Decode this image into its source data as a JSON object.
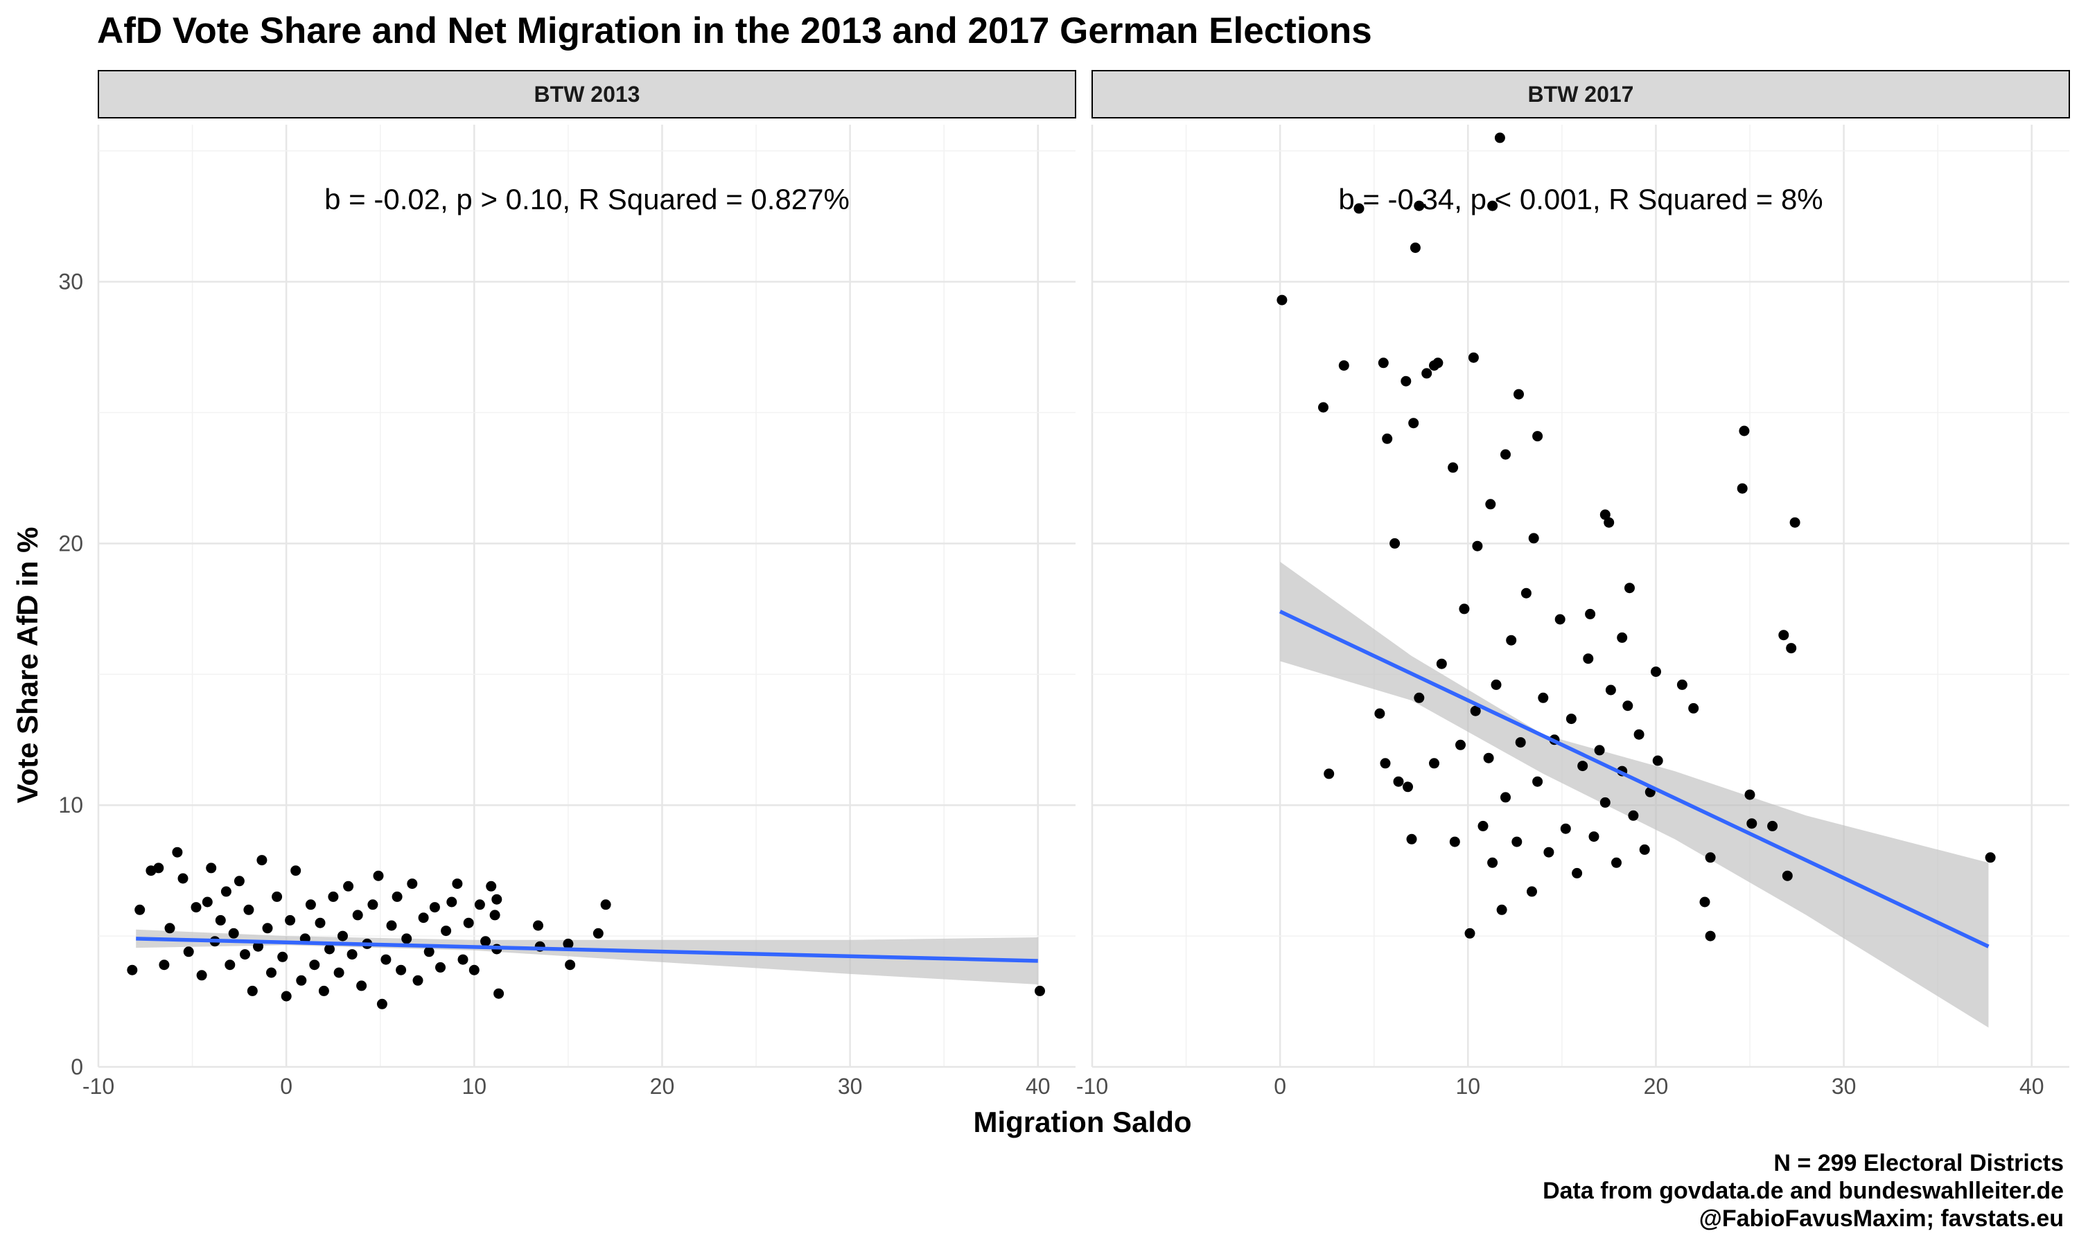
{
  "chart_data": {
    "type": "scatter",
    "title": "AfD Vote Share and Net Migration in the 2013 and 2017 German Elections",
    "xlabel": "Migration Saldo",
    "ylabel": "Vote Share AfD in %",
    "xlim": [
      -10,
      42
    ],
    "ylim": [
      0,
      36
    ],
    "x_ticks": [
      -10,
      0,
      10,
      20,
      30,
      40
    ],
    "x_tick_labels": [
      "-10",
      "0",
      "10",
      "20",
      "30",
      "40"
    ],
    "y_ticks": [
      0,
      10,
      20,
      30
    ],
    "y_tick_labels": [
      "0",
      "10",
      "20",
      "30"
    ],
    "grid": true,
    "point_color": "#000000",
    "line_color": "#3366FF",
    "band_color": "#bfbfbf",
    "strip_fill": "#d9d9d9",
    "caption": [
      "N = 299 Electoral Districts",
      "Data from govdata.de and bundeswahlleiter.de",
      "@FabioFavusMaxim; favstats.eu"
    ],
    "panels": [
      {
        "strip": "BTW 2013",
        "annotation": "b = -0.02, p > 0.10, R Squared = 0.827%",
        "fit": {
          "x": [
            -8,
            40
          ],
          "y": [
            4.9,
            4.05
          ]
        },
        "band": {
          "x": [
            -8,
            0,
            10,
            20,
            30,
            40
          ],
          "lo": [
            4.55,
            4.65,
            4.45,
            4.0,
            3.55,
            3.15
          ],
          "hi": [
            5.25,
            5.0,
            4.85,
            4.85,
            4.85,
            4.95
          ]
        },
        "points": [
          [
            -8.2,
            3.7
          ],
          [
            -7.8,
            6.0
          ],
          [
            -7.2,
            7.5
          ],
          [
            -6.8,
            7.6
          ],
          [
            -6.5,
            3.9
          ],
          [
            -6.2,
            5.3
          ],
          [
            -5.8,
            8.2
          ],
          [
            -5.5,
            7.2
          ],
          [
            -5.2,
            4.4
          ],
          [
            -4.8,
            6.1
          ],
          [
            -4.5,
            3.5
          ],
          [
            -4.2,
            6.3
          ],
          [
            -4.0,
            7.6
          ],
          [
            -3.8,
            4.8
          ],
          [
            -3.5,
            5.6
          ],
          [
            -3.2,
            6.7
          ],
          [
            -3.0,
            3.9
          ],
          [
            -2.8,
            5.1
          ],
          [
            -2.5,
            7.1
          ],
          [
            -2.2,
            4.3
          ],
          [
            -2.0,
            6.0
          ],
          [
            -1.8,
            2.9
          ],
          [
            -1.5,
            4.6
          ],
          [
            -1.3,
            7.9
          ],
          [
            -1.0,
            5.3
          ],
          [
            -0.8,
            3.6
          ],
          [
            -0.5,
            6.5
          ],
          [
            -0.2,
            4.2
          ],
          [
            0.0,
            2.7
          ],
          [
            0.2,
            5.6
          ],
          [
            0.5,
            7.5
          ],
          [
            0.8,
            3.3
          ],
          [
            1.0,
            4.9
          ],
          [
            1.3,
            6.2
          ],
          [
            1.5,
            3.9
          ],
          [
            1.8,
            5.5
          ],
          [
            2.0,
            2.9
          ],
          [
            2.3,
            4.5
          ],
          [
            2.5,
            6.5
          ],
          [
            2.8,
            3.6
          ],
          [
            3.0,
            5.0
          ],
          [
            3.3,
            6.9
          ],
          [
            3.5,
            4.3
          ],
          [
            3.8,
            5.8
          ],
          [
            4.0,
            3.1
          ],
          [
            4.3,
            4.7
          ],
          [
            4.6,
            6.2
          ],
          [
            4.9,
            7.3
          ],
          [
            5.1,
            2.4
          ],
          [
            5.3,
            4.1
          ],
          [
            5.6,
            5.4
          ],
          [
            5.9,
            6.5
          ],
          [
            6.1,
            3.7
          ],
          [
            6.4,
            4.9
          ],
          [
            6.7,
            7.0
          ],
          [
            7.0,
            3.3
          ],
          [
            7.3,
            5.7
          ],
          [
            7.6,
            4.4
          ],
          [
            7.9,
            6.1
          ],
          [
            8.2,
            3.8
          ],
          [
            8.5,
            5.2
          ],
          [
            8.8,
            6.3
          ],
          [
            9.1,
            7.0
          ],
          [
            9.4,
            4.1
          ],
          [
            9.7,
            5.5
          ],
          [
            10.0,
            3.7
          ],
          [
            10.3,
            6.2
          ],
          [
            10.6,
            4.8
          ],
          [
            10.9,
            6.9
          ],
          [
            11.1,
            5.8
          ],
          [
            11.2,
            6.4
          ],
          [
            11.3,
            2.8
          ],
          [
            11.2,
            4.5
          ],
          [
            13.4,
            5.4
          ],
          [
            13.5,
            4.6
          ],
          [
            15.0,
            4.7
          ],
          [
            15.1,
            3.9
          ],
          [
            16.6,
            5.1
          ],
          [
            17.0,
            6.2
          ],
          [
            40.1,
            2.9
          ]
        ]
      },
      {
        "strip": "BTW 2017",
        "annotation": "b = -0.34, p < 0.001, R Squared = 8%",
        "fit": {
          "x": [
            0,
            37.7
          ],
          "y": [
            17.4,
            4.6
          ]
        },
        "band": {
          "x": [
            0,
            7,
            14,
            21,
            28,
            37.7
          ],
          "lo": [
            15.5,
            14.0,
            11.2,
            8.7,
            5.8,
            1.5
          ],
          "hi": [
            19.3,
            15.7,
            12.7,
            11.3,
            9.6,
            7.8
          ]
        },
        "points": [
          [
            0.1,
            29.3
          ],
          [
            2.3,
            25.2
          ],
          [
            3.4,
            26.8
          ],
          [
            4.2,
            32.8
          ],
          [
            5.5,
            26.9
          ],
          [
            5.7,
            24.0
          ],
          [
            6.1,
            20.0
          ],
          [
            6.7,
            26.2
          ],
          [
            7.1,
            24.6
          ],
          [
            7.2,
            31.3
          ],
          [
            7.4,
            32.9
          ],
          [
            7.8,
            26.5
          ],
          [
            8.2,
            26.8
          ],
          [
            8.4,
            26.9
          ],
          [
            9.2,
            22.9
          ],
          [
            10.3,
            27.1
          ],
          [
            11.3,
            32.9
          ],
          [
            11.7,
            35.5
          ],
          [
            12.7,
            25.7
          ],
          [
            13.7,
            24.1
          ],
          [
            17.3,
            21.1
          ],
          [
            17.5,
            20.8
          ],
          [
            18.2,
            16.4
          ],
          [
            18.6,
            18.3
          ],
          [
            24.6,
            22.1
          ],
          [
            24.7,
            24.3
          ],
          [
            26.8,
            16.5
          ],
          [
            27.2,
            16.0
          ],
          [
            27.4,
            20.8
          ],
          [
            25.0,
            10.4
          ],
          [
            25.1,
            9.3
          ],
          [
            26.2,
            9.2
          ],
          [
            27.0,
            7.3
          ],
          [
            37.8,
            8.0
          ],
          [
            22.6,
            6.3
          ],
          [
            22.9,
            5.0
          ],
          [
            22.9,
            8.0
          ],
          [
            22.0,
            13.7
          ],
          [
            21.4,
            14.6
          ],
          [
            20.1,
            11.7
          ],
          [
            2.6,
            11.2
          ],
          [
            5.3,
            13.5
          ],
          [
            5.6,
            11.6
          ],
          [
            6.3,
            10.9
          ],
          [
            6.8,
            10.7
          ],
          [
            7.0,
            8.7
          ],
          [
            7.4,
            14.1
          ],
          [
            8.2,
            11.6
          ],
          [
            8.6,
            15.4
          ],
          [
            9.3,
            8.6
          ],
          [
            9.6,
            12.3
          ],
          [
            10.1,
            5.1
          ],
          [
            10.4,
            13.6
          ],
          [
            10.8,
            9.2
          ],
          [
            11.1,
            11.8
          ],
          [
            11.3,
            7.8
          ],
          [
            11.5,
            14.6
          ],
          [
            11.8,
            6.0
          ],
          [
            12.0,
            10.3
          ],
          [
            12.3,
            16.3
          ],
          [
            12.6,
            8.6
          ],
          [
            12.8,
            12.4
          ],
          [
            13.1,
            18.1
          ],
          [
            13.4,
            6.7
          ],
          [
            13.7,
            10.9
          ],
          [
            14.0,
            14.1
          ],
          [
            14.3,
            8.2
          ],
          [
            14.6,
            12.5
          ],
          [
            14.9,
            17.1
          ],
          [
            15.2,
            9.1
          ],
          [
            15.5,
            13.3
          ],
          [
            15.8,
            7.4
          ],
          [
            16.1,
            11.5
          ],
          [
            16.4,
            15.6
          ],
          [
            16.7,
            8.8
          ],
          [
            17.0,
            12.1
          ],
          [
            17.3,
            10.1
          ],
          [
            17.6,
            14.4
          ],
          [
            17.9,
            7.8
          ],
          [
            18.2,
            11.3
          ],
          [
            18.5,
            13.8
          ],
          [
            18.8,
            9.6
          ],
          [
            19.1,
            12.7
          ],
          [
            19.4,
            8.3
          ],
          [
            19.7,
            10.5
          ],
          [
            20.0,
            15.1
          ],
          [
            10.5,
            19.9
          ],
          [
            11.2,
            21.5
          ],
          [
            12.0,
            23.4
          ],
          [
            9.8,
            17.5
          ],
          [
            13.5,
            20.2
          ],
          [
            16.5,
            17.3
          ]
        ]
      }
    ]
  }
}
